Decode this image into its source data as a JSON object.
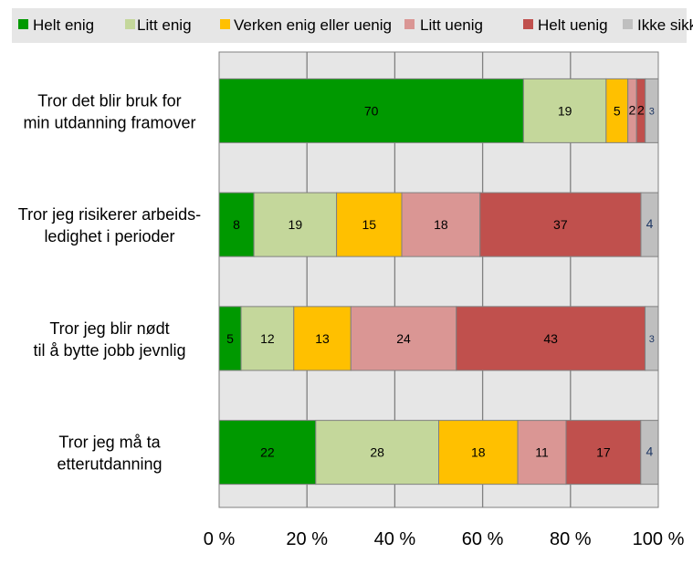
{
  "chart_data": {
    "type": "bar",
    "orientation": "horizontal",
    "stacked": "percent",
    "categories": [
      "Tror det blir bruk for|min utdanning framover",
      "Tror jeg risikerer arbeids-|ledighet i perioder",
      "Tror jeg blir nødt|til å bytte jobb jevnlig",
      "Tror jeg må ta|etterutdanning"
    ],
    "series": [
      {
        "name": "Helt enig",
        "color": "#009900",
        "values": [
          70,
          8,
          5,
          22
        ]
      },
      {
        "name": "Litt enig",
        "color": "#c4d79b",
        "values": [
          19,
          19,
          12,
          28
        ]
      },
      {
        "name": "Verken enig eller uenig",
        "color": "#ffc000",
        "values": [
          5,
          15,
          13,
          18
        ]
      },
      {
        "name": "Litt uenig",
        "color": "#da9694",
        "values": [
          2,
          18,
          24,
          11
        ]
      },
      {
        "name": "Helt uenig",
        "color": "#c0504d",
        "values": [
          2,
          37,
          43,
          17
        ]
      },
      {
        "name": "Ikke sikker",
        "color": "#bfbfbf",
        "values": [
          3,
          4,
          3,
          4
        ]
      }
    ],
    "xlim": [
      0,
      100
    ],
    "xticks": [
      "0 %",
      "20 %",
      "40 %",
      "60 %",
      "80 %",
      "100 %"
    ],
    "grid": true,
    "legend": "top"
  }
}
